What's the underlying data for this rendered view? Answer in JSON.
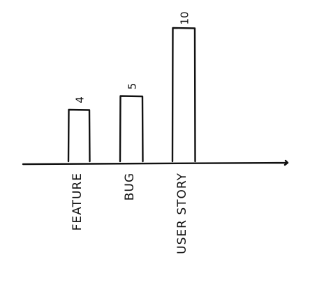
{
  "chart_data": {
    "type": "bar",
    "categories": [
      "FEATURE",
      "BUG",
      "USER STORY"
    ],
    "values": [
      4,
      5,
      10
    ],
    "value_labels": [
      "4",
      "5",
      "10"
    ],
    "title": "",
    "xlabel": "",
    "ylabel": "",
    "ylim": [
      0,
      10
    ],
    "grid": false,
    "legend": "none"
  },
  "colors": {
    "ink": "#111111",
    "paper": "#ffffff"
  }
}
